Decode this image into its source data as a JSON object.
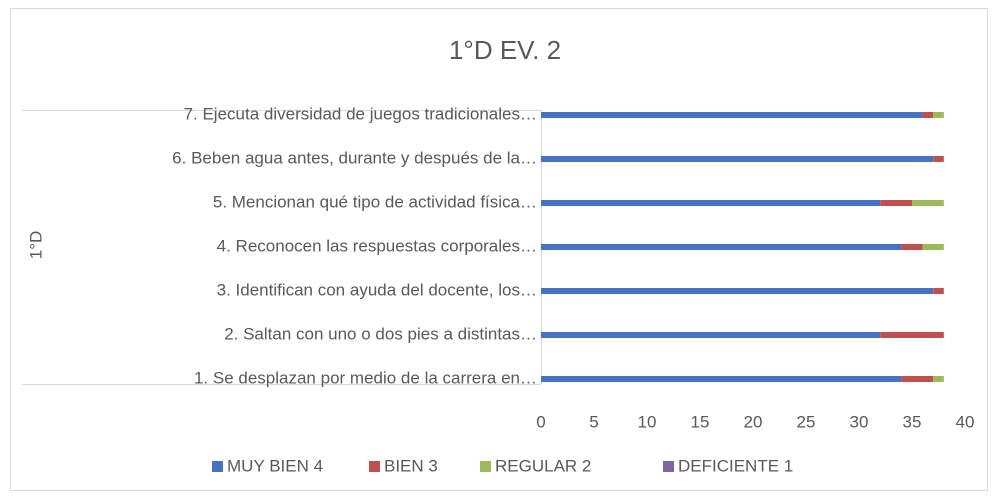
{
  "chart_data": {
    "type": "stacked-barh",
    "title": "1°D  EV. 2",
    "y_label": "1°D",
    "categories": [
      "1. Se desplazan por medio de la carrera en…",
      "2. Saltan con uno o dos pies a distintas…",
      "3. Identifican con ayuda del docente, los…",
      "4. Reconocen las respuestas corporales…",
      "5. Mencionan qué tipo de actividad física…",
      "6. Beben agua antes, durante y después de la…",
      "7. Ejecuta diversidad de juegos tradicionales…"
    ],
    "series": [
      {
        "name": "MUY BIEN 4",
        "color": "#4472c4",
        "values": [
          34,
          32,
          37,
          34,
          32,
          37,
          36
        ]
      },
      {
        "name": "BIEN 3",
        "color": "#c0504d",
        "values": [
          3,
          6,
          1,
          2,
          3,
          1,
          1
        ]
      },
      {
        "name": "REGULAR 2",
        "color": "#9bbb59",
        "values": [
          1,
          0,
          0,
          2,
          3,
          0,
          1
        ]
      },
      {
        "name": "DEFICIENTE 1",
        "color": "#8064a2",
        "values": [
          0,
          0,
          0,
          0,
          0,
          0,
          0
        ]
      }
    ],
    "xlim": [
      0,
      40
    ],
    "xticks": [
      0,
      5,
      10,
      15,
      20,
      25,
      30,
      35,
      40
    ],
    "legend": "bottom"
  }
}
